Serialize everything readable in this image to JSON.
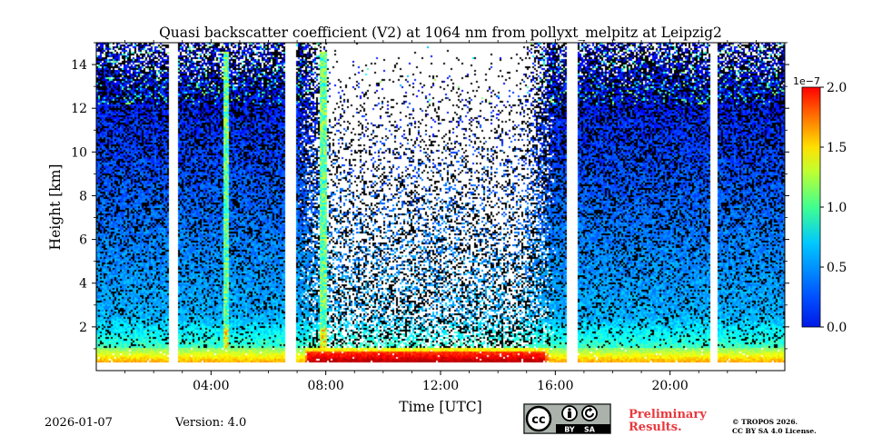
{
  "chart_data": {
    "type": "heatmap",
    "title": "Quasi backscatter coefficient (V2) at 1064 nm from pollyxt_melpitz at Leipzig2",
    "xlabel": "Time [UTC]",
    "ylabel": "Height [km]",
    "xlim": [
      0,
      24
    ],
    "ylim": [
      0,
      15
    ],
    "x_ticks": [
      4,
      8,
      12,
      16,
      20
    ],
    "x_tick_labels": [
      "04:00",
      "08:00",
      "12:00",
      "16:00",
      "20:00"
    ],
    "y_ticks": [
      2,
      4,
      6,
      8,
      10,
      12,
      14
    ],
    "y_tick_labels": [
      "2",
      "4",
      "6",
      "8",
      "10",
      "12",
      "14"
    ],
    "colorbar": {
      "min": 0.0,
      "max": 2.0,
      "scale_label": "1e−7",
      "ticks": [
        0.0,
        0.5,
        1.0,
        1.5,
        2.0
      ],
      "tick_labels": [
        "0.0",
        "0.5",
        "1.0",
        "1.5",
        "2.0"
      ],
      "colormap": "jet"
    },
    "data_gaps_hours": [
      [
        2.5,
        2.85
      ],
      [
        6.6,
        6.95
      ],
      [
        16.4,
        16.75
      ],
      [
        21.4,
        21.65
      ]
    ],
    "cloud_columns_hours": [
      [
        4.4,
        4.6
      ],
      [
        7.8,
        8.0
      ]
    ],
    "boundary_layer_top_km": 1.1,
    "low_signal_region": {
      "start_hour": 7.0,
      "end_hour": 16.0
    }
  },
  "footer": {
    "date": "2026-01-07",
    "version": "Version: 4.0",
    "preliminary_line1": "Preliminary",
    "preliminary_line2": "Results.",
    "copyright_line1": "© TROPOS 2026.",
    "copyright_line2": "CC BY SA 4.0 License.",
    "cc_label": "cc",
    "by_label": "BY",
    "sa_label": "SA"
  },
  "colors": {
    "prelim_red": "#e8383d",
    "cc_bg": "#aab2ab"
  }
}
